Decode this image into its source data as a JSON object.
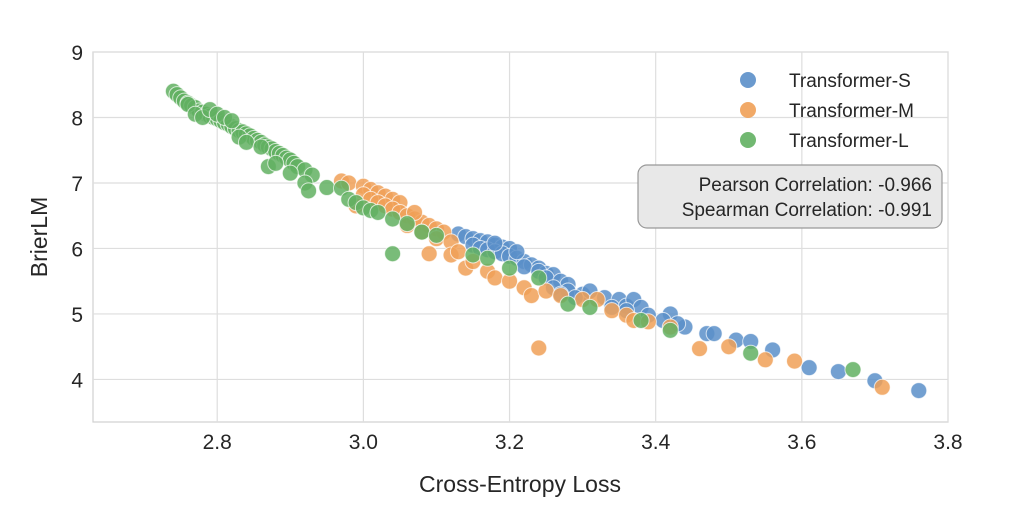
{
  "chart_data": {
    "type": "scatter",
    "title": "",
    "xlabel": "Cross-Entropy Loss",
    "ylabel": "BrierLM",
    "xlim": [
      2.63,
      3.8
    ],
    "ylim": [
      3.35,
      9.0
    ],
    "xticks": [
      2.8,
      3.0,
      3.2,
      3.4,
      3.6,
      3.8
    ],
    "xtick_labels": [
      "2.8",
      "3.0",
      "3.2",
      "3.4",
      "3.6",
      "3.8"
    ],
    "yticks": [
      4,
      5,
      6,
      7,
      8,
      9
    ],
    "ytick_labels": [
      "4",
      "5",
      "6",
      "7",
      "8",
      "9"
    ],
    "grid": true,
    "legend_position": "top-right",
    "annotation": {
      "lines": [
        "Pearson Correlation: -0.966",
        "Spearman Correlation: -0.991"
      ],
      "position": "right"
    },
    "series": [
      {
        "name": "Transformer-S",
        "color": "#5b8fc9",
        "points": [
          [
            3.13,
            6.22
          ],
          [
            3.14,
            6.18
          ],
          [
            3.15,
            6.15
          ],
          [
            3.16,
            6.12
          ],
          [
            3.17,
            6.1
          ],
          [
            3.18,
            6.05
          ],
          [
            3.19,
            6.02
          ],
          [
            3.2,
            6.0
          ],
          [
            3.15,
            6.05
          ],
          [
            3.16,
            6.0
          ],
          [
            3.17,
            5.98
          ],
          [
            3.18,
            5.95
          ],
          [
            3.19,
            5.92
          ],
          [
            3.2,
            5.88
          ],
          [
            3.21,
            5.85
          ],
          [
            3.22,
            5.8
          ],
          [
            3.23,
            5.75
          ],
          [
            3.24,
            5.7
          ],
          [
            3.25,
            5.62
          ],
          [
            3.26,
            5.6
          ],
          [
            3.22,
            5.72
          ],
          [
            3.24,
            5.65
          ],
          [
            3.25,
            5.55
          ],
          [
            3.27,
            5.5
          ],
          [
            3.28,
            5.45
          ],
          [
            3.26,
            5.4
          ],
          [
            3.28,
            5.35
          ],
          [
            3.3,
            5.3
          ],
          [
            3.31,
            5.35
          ],
          [
            3.33,
            5.25
          ],
          [
            3.35,
            5.22
          ],
          [
            3.34,
            5.1
          ],
          [
            3.36,
            5.12
          ],
          [
            3.37,
            5.22
          ],
          [
            3.38,
            5.1
          ],
          [
            3.36,
            5.05
          ],
          [
            3.39,
            4.98
          ],
          [
            3.42,
            5.0
          ],
          [
            3.41,
            4.9
          ],
          [
            3.44,
            4.8
          ],
          [
            3.43,
            4.85
          ],
          [
            3.47,
            4.7
          ],
          [
            3.48,
            4.7
          ],
          [
            3.51,
            4.6
          ],
          [
            3.53,
            4.58
          ],
          [
            3.56,
            4.45
          ],
          [
            3.61,
            4.18
          ],
          [
            3.65,
            4.12
          ],
          [
            3.7,
            3.98
          ],
          [
            3.76,
            3.83
          ],
          [
            3.29,
            5.25
          ],
          [
            3.21,
            5.95
          ],
          [
            3.18,
            6.08
          ],
          [
            3.27,
            5.3
          ]
        ]
      },
      {
        "name": "Transformer-M",
        "color": "#f0a057",
        "points": [
          [
            2.97,
            7.03
          ],
          [
            2.98,
            7.0
          ],
          [
            3.0,
            6.95
          ],
          [
            3.01,
            6.9
          ],
          [
            3.02,
            6.85
          ],
          [
            3.03,
            6.8
          ],
          [
            3.04,
            6.75
          ],
          [
            3.05,
            6.7
          ],
          [
            3.0,
            6.82
          ],
          [
            3.01,
            6.75
          ],
          [
            3.02,
            6.7
          ],
          [
            3.03,
            6.65
          ],
          [
            3.04,
            6.6
          ],
          [
            3.05,
            6.55
          ],
          [
            3.06,
            6.5
          ],
          [
            3.07,
            6.45
          ],
          [
            3.08,
            6.4
          ],
          [
            3.09,
            6.35
          ],
          [
            3.1,
            6.3
          ],
          [
            3.11,
            6.25
          ],
          [
            3.06,
            6.35
          ],
          [
            3.08,
            6.25
          ],
          [
            3.1,
            6.15
          ],
          [
            3.12,
            6.1
          ],
          [
            3.09,
            5.92
          ],
          [
            3.12,
            5.9
          ],
          [
            3.14,
            5.7
          ],
          [
            3.17,
            5.65
          ],
          [
            3.18,
            5.55
          ],
          [
            3.2,
            5.5
          ],
          [
            3.22,
            5.4
          ],
          [
            3.23,
            5.28
          ],
          [
            3.25,
            5.35
          ],
          [
            3.27,
            5.28
          ],
          [
            3.3,
            5.22
          ],
          [
            3.32,
            5.22
          ],
          [
            3.34,
            5.05
          ],
          [
            3.36,
            4.98
          ],
          [
            3.37,
            4.9
          ],
          [
            3.39,
            4.88
          ],
          [
            3.42,
            4.8
          ],
          [
            3.46,
            4.47
          ],
          [
            3.5,
            4.5
          ],
          [
            3.55,
            4.3
          ],
          [
            3.59,
            4.28
          ],
          [
            3.71,
            3.88
          ],
          [
            3.24,
            4.48
          ],
          [
            3.13,
            5.95
          ],
          [
            3.15,
            5.8
          ],
          [
            3.07,
            6.55
          ],
          [
            2.99,
            6.65
          ]
        ]
      },
      {
        "name": "Transformer-L",
        "color": "#62b062",
        "points": [
          [
            2.74,
            8.4
          ],
          [
            2.745,
            8.35
          ],
          [
            2.75,
            8.3
          ],
          [
            2.755,
            8.25
          ],
          [
            2.76,
            8.22
          ],
          [
            2.765,
            8.18
          ],
          [
            2.77,
            8.15
          ],
          [
            2.775,
            8.1
          ],
          [
            2.78,
            8.08
          ],
          [
            2.785,
            8.05
          ],
          [
            2.79,
            8.02
          ],
          [
            2.795,
            8.0
          ],
          [
            2.8,
            7.98
          ],
          [
            2.805,
            7.95
          ],
          [
            2.81,
            7.92
          ],
          [
            2.815,
            7.9
          ],
          [
            2.82,
            7.86
          ],
          [
            2.825,
            7.83
          ],
          [
            2.83,
            7.8
          ],
          [
            2.835,
            7.78
          ],
          [
            2.84,
            7.75
          ],
          [
            2.845,
            7.72
          ],
          [
            2.85,
            7.68
          ],
          [
            2.855,
            7.65
          ],
          [
            2.86,
            7.62
          ],
          [
            2.865,
            7.58
          ],
          [
            2.87,
            7.55
          ],
          [
            2.875,
            7.52
          ],
          [
            2.88,
            7.48
          ],
          [
            2.885,
            7.45
          ],
          [
            2.89,
            7.42
          ],
          [
            2.895,
            7.38
          ],
          [
            2.9,
            7.35
          ],
          [
            2.905,
            7.3
          ],
          [
            2.91,
            7.25
          ],
          [
            2.92,
            7.2
          ],
          [
            2.93,
            7.12
          ],
          [
            2.76,
            8.2
          ],
          [
            2.77,
            8.05
          ],
          [
            2.78,
            8.0
          ],
          [
            2.79,
            8.12
          ],
          [
            2.8,
            8.05
          ],
          [
            2.81,
            8.0
          ],
          [
            2.82,
            7.95
          ],
          [
            2.83,
            7.7
          ],
          [
            2.84,
            7.62
          ],
          [
            2.86,
            7.55
          ],
          [
            2.87,
            7.25
          ],
          [
            2.88,
            7.3
          ],
          [
            2.9,
            7.15
          ],
          [
            2.92,
            7.0
          ],
          [
            2.925,
            6.88
          ],
          [
            2.95,
            6.93
          ],
          [
            2.97,
            6.92
          ],
          [
            2.98,
            6.75
          ],
          [
            2.99,
            6.7
          ],
          [
            3.0,
            6.62
          ],
          [
            3.01,
            6.58
          ],
          [
            3.02,
            6.55
          ],
          [
            3.04,
            6.45
          ],
          [
            3.06,
            6.38
          ],
          [
            3.08,
            6.25
          ],
          [
            3.1,
            6.2
          ],
          [
            3.04,
            5.92
          ],
          [
            3.15,
            5.9
          ],
          [
            3.17,
            5.85
          ],
          [
            3.2,
            5.7
          ],
          [
            3.24,
            5.55
          ],
          [
            3.28,
            5.15
          ],
          [
            3.31,
            5.1
          ],
          [
            3.38,
            4.9
          ],
          [
            3.42,
            4.75
          ],
          [
            3.53,
            4.4
          ],
          [
            3.67,
            4.15
          ]
        ]
      }
    ]
  }
}
